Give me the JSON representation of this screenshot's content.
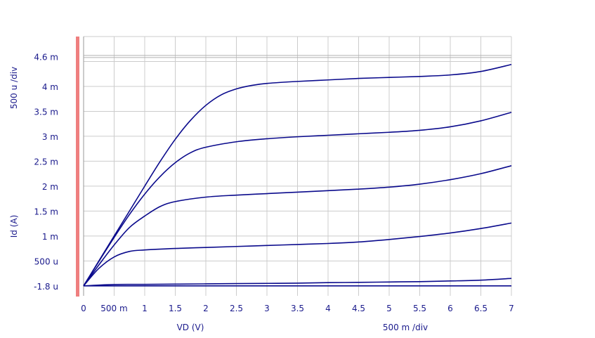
{
  "colors": {
    "curve": "#0a0a8c",
    "grid": "#cccccc",
    "axis_text": "#1a1a8c",
    "left_bar": "#ef7f7f",
    "ref_line": "#b0b0b0"
  },
  "chart_data": {
    "type": "line",
    "xlabel": "VD (V)",
    "x_div_label": "500 m /div",
    "ylabel": "Id (A)",
    "y_div_label": "500 u /div",
    "xlim": [
      0,
      7
    ],
    "ylim": [
      -1.8e-06,
      0.0046
    ],
    "x_ticks": [
      {
        "v": 0,
        "label": "0"
      },
      {
        "v": 0.5,
        "label": "500 m"
      },
      {
        "v": 1,
        "label": "1"
      },
      {
        "v": 1.5,
        "label": "1.5"
      },
      {
        "v": 2,
        "label": "2"
      },
      {
        "v": 2.5,
        "label": "2.5"
      },
      {
        "v": 3,
        "label": "3"
      },
      {
        "v": 3.5,
        "label": "3.5"
      },
      {
        "v": 4,
        "label": "4"
      },
      {
        "v": 4.5,
        "label": "4.5"
      },
      {
        "v": 5,
        "label": "5"
      },
      {
        "v": 5.5,
        "label": "5.5"
      },
      {
        "v": 6,
        "label": "6"
      },
      {
        "v": 6.5,
        "label": "6.5"
      },
      {
        "v": 7,
        "label": "7"
      }
    ],
    "y_ticks": [
      {
        "v": -1.8e-06,
        "label": "-1.8 u"
      },
      {
        "v": 0.0005,
        "label": "500 u"
      },
      {
        "v": 0.001,
        "label": "1 m"
      },
      {
        "v": 0.0015,
        "label": "1.5 m"
      },
      {
        "v": 0.002,
        "label": "2 m"
      },
      {
        "v": 0.0025,
        "label": "2.5 m"
      },
      {
        "v": 0.003,
        "label": "3 m"
      },
      {
        "v": 0.0035,
        "label": "3.5 m"
      },
      {
        "v": 0.004,
        "label": "4 m"
      },
      {
        "v": 0.0046,
        "label": "4.6 m"
      }
    ],
    "grid": true,
    "reference_lines_y": [
      0.0046
    ],
    "series": [
      {
        "x": [
          0,
          0.5,
          1,
          1.5,
          2,
          2.5,
          3,
          3.5,
          4,
          4.5,
          5,
          5.5,
          6,
          6.5,
          7
        ],
        "values": [
          0,
          0,
          0,
          0,
          0,
          0,
          0,
          0,
          0,
          0,
          0,
          0,
          0,
          0,
          0
        ]
      },
      {
        "x": [
          0,
          0.5,
          1,
          1.5,
          2,
          2.5,
          3,
          3.5,
          4,
          4.5,
          5,
          5.5,
          6,
          6.5,
          7
        ],
        "values": [
          0,
          2.8e-05,
          3e-05,
          3.5e-05,
          4e-05,
          4.5e-05,
          5e-05,
          5.5e-05,
          6.5e-05,
          7e-05,
          7.8e-05,
          8.5e-05,
          9.8e-05,
          0.000115,
          0.00015
        ]
      },
      {
        "x": [
          0,
          0.25,
          0.5,
          0.75,
          1,
          1.5,
          2,
          2.5,
          3,
          3.5,
          4,
          4.5,
          5,
          5.5,
          6,
          6.5,
          7
        ],
        "values": [
          0,
          0.00035,
          0.00058,
          0.00069,
          0.00072,
          0.00075,
          0.00077,
          0.00079,
          0.00081,
          0.00083,
          0.00085,
          0.00088,
          0.00093,
          0.00099,
          0.00106,
          0.00115,
          0.00126
        ]
      },
      {
        "x": [
          0,
          0.25,
          0.5,
          0.75,
          1,
          1.25,
          1.5,
          2,
          2.5,
          3,
          3.5,
          4,
          4.5,
          5,
          5.5,
          6,
          6.5,
          7
        ],
        "values": [
          0,
          0.00042,
          0.00082,
          0.00117,
          0.0014,
          0.00159,
          0.00169,
          0.00178,
          0.00182,
          0.00185,
          0.00188,
          0.00191,
          0.00194,
          0.00198,
          0.00204,
          0.00213,
          0.00225,
          0.00241
        ]
      },
      {
        "x": [
          0,
          0.25,
          0.5,
          0.75,
          1,
          1.25,
          1.5,
          1.75,
          2,
          2.5,
          3,
          3.5,
          4,
          4.5,
          5,
          5.5,
          6,
          6.5,
          7
        ],
        "values": [
          0,
          0.00049,
          0.00097,
          0.00143,
          0.00184,
          0.00219,
          0.00247,
          0.00267,
          0.00278,
          0.00289,
          0.00295,
          0.00299,
          0.00302,
          0.00305,
          0.00308,
          0.00312,
          0.00319,
          0.00331,
          0.00348
        ]
      },
      {
        "x": [
          0,
          0.25,
          0.5,
          0.75,
          1,
          1.25,
          1.5,
          1.75,
          2,
          2.25,
          2.5,
          2.75,
          3,
          3.5,
          4,
          4.5,
          5,
          5.5,
          6,
          6.5,
          7
        ],
        "values": [
          0,
          0.0005,
          0.001,
          0.0015,
          0.002,
          0.00249,
          0.00294,
          0.00332,
          0.00362,
          0.00383,
          0.00395,
          0.00402,
          0.00406,
          0.0041,
          0.00413,
          0.00416,
          0.00418,
          0.0042,
          0.00423,
          0.0043,
          0.00444
        ]
      }
    ]
  }
}
